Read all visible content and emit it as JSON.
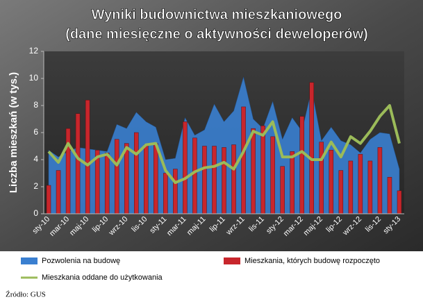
{
  "chart_data": {
    "type": "combo",
    "title": "Wyniki budownictwa mieszkaniowego",
    "subtitle": "(dane miesięczne o aktywności deweloperów)",
    "y_label": "Liczba mieszkań (w tys.)",
    "source": "Źródło: GUS",
    "categories": [
      "sty-10",
      null,
      "mar-10",
      null,
      "maj-10",
      null,
      "lip-10",
      null,
      "wrz-10",
      null,
      "lis-10",
      null,
      "sty-11",
      null,
      "mar-11",
      null,
      "maj-11",
      null,
      "lip-11",
      null,
      "wrz-11",
      null,
      "lis-11",
      null,
      "sty-12",
      null,
      "mar-12",
      null,
      "maj-12",
      null,
      "lip-12",
      null,
      "wrz-12",
      null,
      "lis-12",
      null,
      "sty-13"
    ],
    "ylim": [
      0,
      12
    ],
    "yticks": [
      0,
      2,
      4,
      6,
      8,
      10,
      12
    ],
    "series": [
      {
        "name": "Pozwolenia na budowę",
        "type": "area",
        "color": "#3a7fd0",
        "values": [
          4.7,
          4.2,
          4.6,
          4.9,
          4.8,
          4.7,
          4.6,
          6.6,
          6.3,
          7.5,
          6.8,
          6.4,
          4.0,
          4.1,
          7.1,
          5.8,
          6.2,
          8.1,
          6.8,
          7.6,
          10.1,
          7.0,
          6.3,
          8.3,
          5.5,
          7.1,
          6.1,
          9.2,
          5.4,
          6.4,
          5.4,
          5.1,
          4.5,
          5.5,
          6.0,
          5.9,
          3.3
        ]
      },
      {
        "name": "Mieszkania, których budowę rozpoczęto",
        "type": "bar",
        "color": "#c8262c",
        "values": [
          2.1,
          3.2,
          6.3,
          7.4,
          8.4,
          4.7,
          4.5,
          5.5,
          5.2,
          6.0,
          5.1,
          5.2,
          3.0,
          3.3,
          6.8,
          5.6,
          5.0,
          5.0,
          4.9,
          5.1,
          7.9,
          6.3,
          6.5,
          5.7,
          3.5,
          4.6,
          7.2,
          9.7,
          5.3,
          4.7,
          3.2,
          3.9,
          4.4,
          3.9,
          4.9,
          2.7,
          1.7
        ]
      },
      {
        "name": "Mieszkania oddane do użytkowania",
        "type": "line",
        "color": "#9bbb59",
        "values": [
          4.6,
          3.8,
          5.2,
          4.1,
          3.6,
          4.2,
          4.4,
          3.6,
          4.9,
          4.4,
          5.1,
          5.2,
          3.2,
          2.3,
          2.6,
          3.1,
          3.4,
          3.5,
          3.8,
          3.3,
          4.6,
          6.1,
          5.8,
          6.8,
          4.2,
          4.2,
          4.6,
          4.0,
          4.0,
          5.3,
          4.2,
          5.7,
          5.2,
          6.1,
          7.2,
          8.0,
          5.2
        ]
      }
    ]
  }
}
